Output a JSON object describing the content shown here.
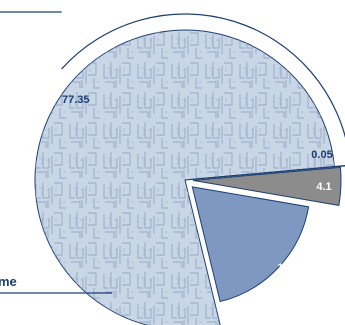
{
  "chart_data": {
    "type": "pie",
    "title": "",
    "slices": [
      {
        "value": 77.35,
        "label": "77.35",
        "color": "#c9d6e6",
        "pattern": "letter-texture",
        "explode": false
      },
      {
        "value": 0.05,
        "label": "0.05",
        "color": "#6f86aa",
        "explode": true
      },
      {
        "value": 4.1,
        "label": "4.1",
        "color": "#8c8c8c",
        "explode": true
      },
      {
        "value": 18.5,
        "label": "18.5",
        "color": "#7f98c2",
        "explode": true
      }
    ],
    "legend": {
      "placement": "bottom-left",
      "visible_text": "me"
    },
    "colors": {
      "outline": "#1d3f73",
      "ring": "#1d3f73",
      "texture": "#8ea3c1"
    }
  }
}
